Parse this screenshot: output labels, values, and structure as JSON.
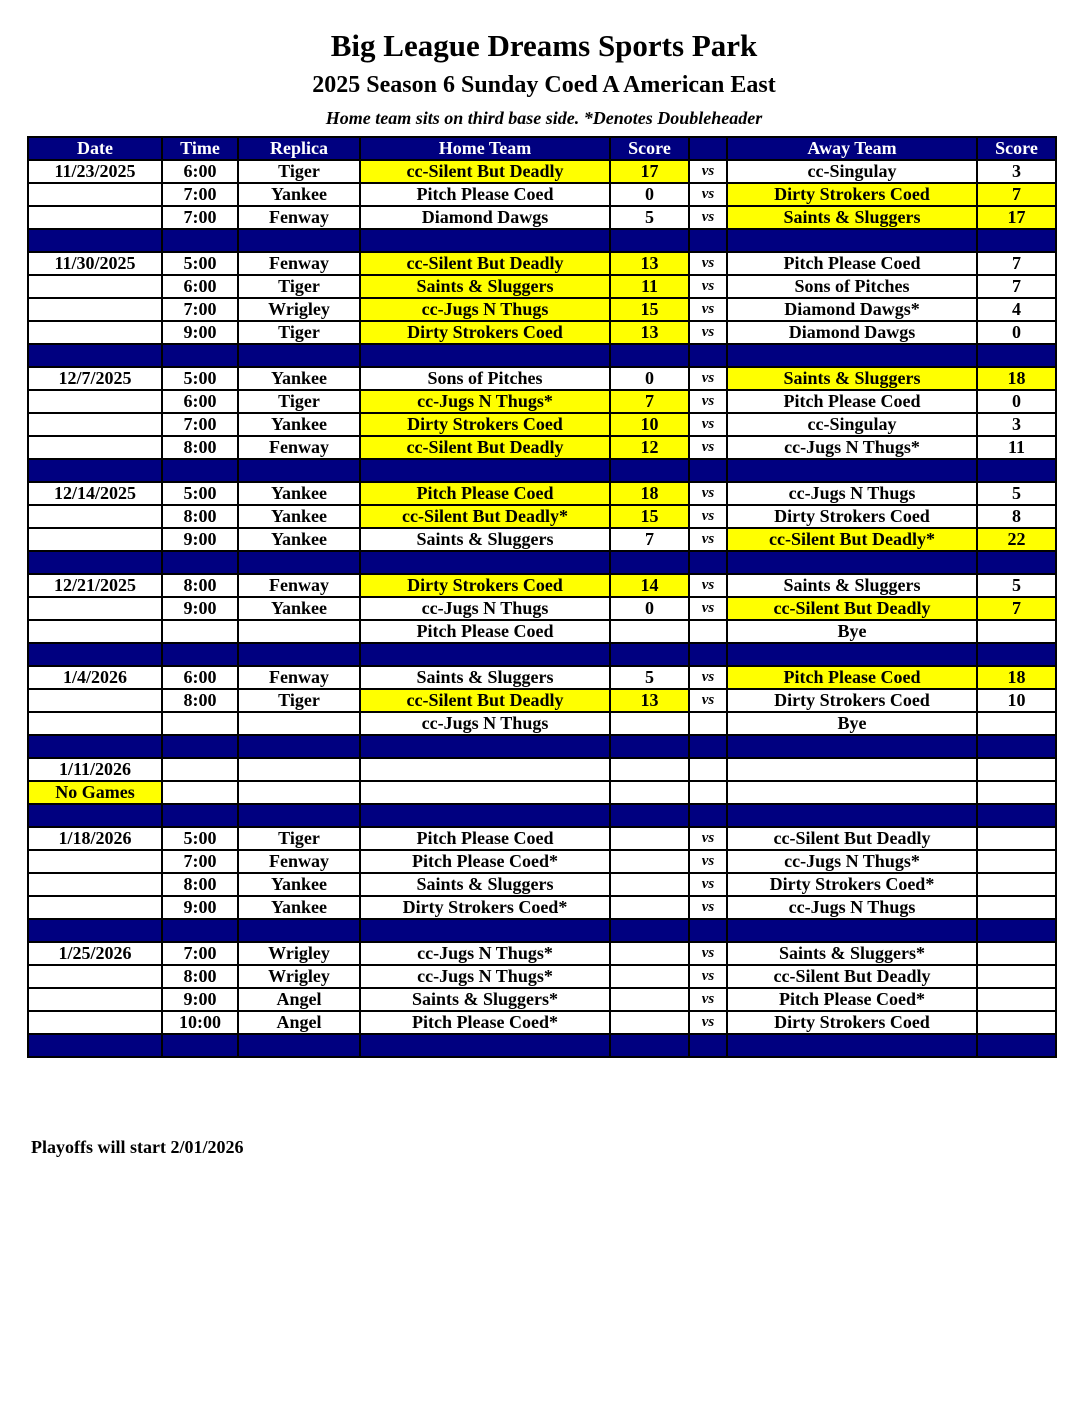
{
  "title": "Big League Dreams Sports Park",
  "subtitle": "2025 Season 6 Sunday Coed A American East",
  "note": "Home team sits on third base side.  *Denotes Doubleheader",
  "footer": "Playoffs will start 2/01/2026",
  "colors": {
    "header_bg": "#000080",
    "winner_highlight": "#ffff00"
  },
  "columns": [
    "Date",
    "Time",
    "Replica",
    "Home Team",
    "Score",
    "",
    "Away Team",
    "Score"
  ],
  "rows": [
    {
      "date": "11/23/2025",
      "time": "6:00",
      "replica": "Tiger",
      "home": "cc-Silent But Deadly",
      "home_score": "17",
      "vs": "vs",
      "away": "cc-Singulay",
      "away_score": "3",
      "winner": "home"
    },
    {
      "date": "",
      "time": "7:00",
      "replica": "Yankee",
      "home": "Pitch Please Coed",
      "home_score": "0",
      "vs": "vs",
      "away": "Dirty Strokers Coed",
      "away_score": "7",
      "winner": "away"
    },
    {
      "date": "",
      "time": "7:00",
      "replica": "Fenway",
      "home": "Diamond Dawgs",
      "home_score": "5",
      "vs": "vs",
      "away": "Saints & Sluggers",
      "away_score": "17",
      "winner": "away"
    },
    {
      "sep": true
    },
    {
      "date": "11/30/2025",
      "time": "5:00",
      "replica": "Fenway",
      "home": "cc-Silent But Deadly",
      "home_score": "13",
      "vs": "vs",
      "away": "Pitch Please Coed",
      "away_score": "7",
      "winner": "home"
    },
    {
      "date": "",
      "time": "6:00",
      "replica": "Tiger",
      "home": "Saints & Sluggers",
      "home_score": "11",
      "vs": "vs",
      "away": "Sons of Pitches",
      "away_score": "7",
      "winner": "home"
    },
    {
      "date": "",
      "time": "7:00",
      "replica": "Wrigley",
      "home": "cc-Jugs N Thugs",
      "home_score": "15",
      "vs": "vs",
      "away": "Diamond Dawgs*",
      "away_score": "4",
      "winner": "home"
    },
    {
      "date": "",
      "time": "9:00",
      "replica": "Tiger",
      "home": "Dirty Strokers Coed",
      "home_score": "13",
      "vs": "vs",
      "away": "Diamond Dawgs",
      "away_score": "0",
      "winner": "home"
    },
    {
      "sep": true
    },
    {
      "date": "12/7/2025",
      "time": "5:00",
      "replica": "Yankee",
      "home": "Sons of Pitches",
      "home_score": "0",
      "vs": "vs",
      "away": "Saints & Sluggers",
      "away_score": "18",
      "winner": "away"
    },
    {
      "date": "",
      "time": "6:00",
      "replica": "Tiger",
      "home": "cc-Jugs N Thugs*",
      "home_score": "7",
      "vs": "vs",
      "away": "Pitch Please Coed",
      "away_score": "0",
      "winner": "home"
    },
    {
      "date": "",
      "time": "7:00",
      "replica": "Yankee",
      "home": "Dirty Strokers Coed",
      "home_score": "10",
      "vs": "vs",
      "away": "cc-Singulay",
      "away_score": "3",
      "winner": "home"
    },
    {
      "date": "",
      "time": "8:00",
      "replica": "Fenway",
      "home": "cc-Silent But Deadly",
      "home_score": "12",
      "vs": "vs",
      "away": "cc-Jugs N Thugs*",
      "away_score": "11",
      "winner": "home"
    },
    {
      "sep": true
    },
    {
      "date": "12/14/2025",
      "time": "5:00",
      "replica": "Yankee",
      "home": "Pitch Please Coed",
      "home_score": "18",
      "vs": "vs",
      "away": "cc-Jugs N Thugs",
      "away_score": "5",
      "winner": "home"
    },
    {
      "date": "",
      "time": "8:00",
      "replica": "Yankee",
      "home": "cc-Silent But Deadly*",
      "home_score": "15",
      "vs": "vs",
      "away": "Dirty Strokers Coed",
      "away_score": "8",
      "winner": "home"
    },
    {
      "date": "",
      "time": "9:00",
      "replica": "Yankee",
      "home": "Saints & Sluggers",
      "home_score": "7",
      "vs": "vs",
      "away": "cc-Silent But Deadly*",
      "away_score": "22",
      "winner": "away"
    },
    {
      "sep": true
    },
    {
      "date": "12/21/2025",
      "time": "8:00",
      "replica": "Fenway",
      "home": "Dirty Strokers Coed",
      "home_score": "14",
      "vs": "vs",
      "away": "Saints & Sluggers",
      "away_score": "5",
      "winner": "home"
    },
    {
      "date": "",
      "time": "9:00",
      "replica": "Yankee",
      "home": "cc-Jugs N Thugs",
      "home_score": "0",
      "vs": "vs",
      "away": "cc-Silent But Deadly",
      "away_score": "7",
      "winner": "away"
    },
    {
      "date": "",
      "time": "",
      "replica": "",
      "home": "Pitch Please Coed",
      "home_score": "",
      "vs": "",
      "away": "Bye",
      "away_score": "",
      "winner": ""
    },
    {
      "sep": true
    },
    {
      "date": "1/4/2026",
      "time": "6:00",
      "replica": "Fenway",
      "home": "Saints & Sluggers",
      "home_score": "5",
      "vs": "vs",
      "away": "Pitch Please Coed",
      "away_score": "18",
      "winner": "away"
    },
    {
      "date": "",
      "time": "8:00",
      "replica": "Tiger",
      "home": "cc-Silent But Deadly",
      "home_score": "13",
      "vs": "vs",
      "away": "Dirty Strokers Coed",
      "away_score": "10",
      "winner": "home"
    },
    {
      "date": "",
      "time": "",
      "replica": "",
      "home": "cc-Jugs N Thugs",
      "home_score": "",
      "vs": "",
      "away": "Bye",
      "away_score": "",
      "winner": ""
    },
    {
      "sep": true
    },
    {
      "date": "1/11/2026",
      "time": "",
      "replica": "",
      "home": "",
      "home_score": "",
      "vs": "",
      "away": "",
      "away_score": "",
      "winner": ""
    },
    {
      "date": "No Games",
      "time": "",
      "replica": "",
      "home": "",
      "home_score": "",
      "vs": "",
      "away": "",
      "away_score": "",
      "winner": "date"
    },
    {
      "sep": true
    },
    {
      "date": "1/18/2026",
      "time": "5:00",
      "replica": "Tiger",
      "home": "Pitch Please Coed",
      "home_score": "",
      "vs": "vs",
      "away": "cc-Silent But Deadly",
      "away_score": "",
      "winner": ""
    },
    {
      "date": "",
      "time": "7:00",
      "replica": "Fenway",
      "home": "Pitch Please Coed*",
      "home_score": "",
      "vs": "vs",
      "away": "cc-Jugs N Thugs*",
      "away_score": "",
      "winner": ""
    },
    {
      "date": "",
      "time": "8:00",
      "replica": "Yankee",
      "home": "Saints & Sluggers",
      "home_score": "",
      "vs": "vs",
      "away": "Dirty Strokers Coed*",
      "away_score": "",
      "winner": ""
    },
    {
      "date": "",
      "time": "9:00",
      "replica": "Yankee",
      "home": "Dirty Strokers Coed*",
      "home_score": "",
      "vs": "vs",
      "away": "cc-Jugs N Thugs",
      "away_score": "",
      "winner": ""
    },
    {
      "sep": true
    },
    {
      "date": "1/25/2026",
      "time": "7:00",
      "replica": "Wrigley",
      "home": "cc-Jugs N Thugs*",
      "home_score": "",
      "vs": "vs",
      "away": "Saints & Sluggers*",
      "away_score": "",
      "winner": ""
    },
    {
      "date": "",
      "time": "8:00",
      "replica": "Wrigley",
      "home": "cc-Jugs N Thugs*",
      "home_score": "",
      "vs": "vs",
      "away": "cc-Silent But Deadly",
      "away_score": "",
      "winner": ""
    },
    {
      "date": "",
      "time": "9:00",
      "replica": "Angel",
      "home": "Saints & Sluggers*",
      "home_score": "",
      "vs": "vs",
      "away": "Pitch Please Coed*",
      "away_score": "",
      "winner": ""
    },
    {
      "date": "",
      "time": "10:00",
      "replica": "Angel",
      "home": "Pitch Please Coed*",
      "home_score": "",
      "vs": "vs",
      "away": "Dirty Strokers Coed",
      "away_score": "",
      "winner": ""
    },
    {
      "sep": true
    }
  ]
}
